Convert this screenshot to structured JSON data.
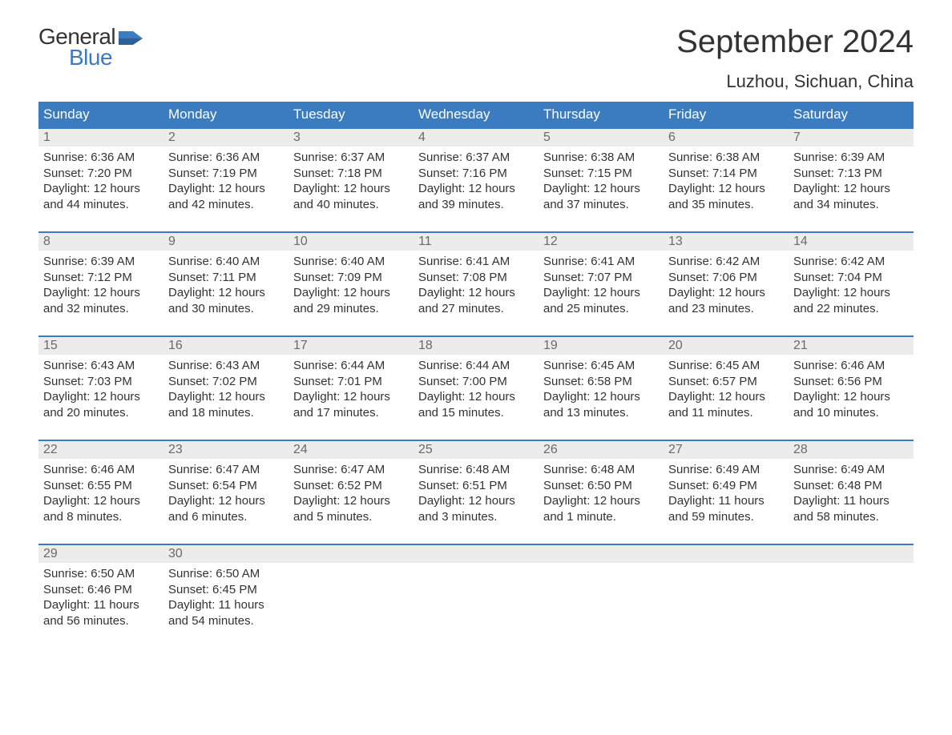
{
  "logo": {
    "line1": "General",
    "line2": "Blue"
  },
  "title": "September 2024",
  "location": "Luzhou, Sichuan, China",
  "colors": {
    "header_bg": "#3b7bbf",
    "header_text": "#ffffff",
    "daynum_bg": "#ececec",
    "daynum_text": "#6a6a6a",
    "body_text": "#333333",
    "rule": "#3b7bbf",
    "page_bg": "#ffffff"
  },
  "day_names": [
    "Sunday",
    "Monday",
    "Tuesday",
    "Wednesday",
    "Thursday",
    "Friday",
    "Saturday"
  ],
  "weeks": [
    [
      {
        "n": "1",
        "sunrise": "6:36 AM",
        "sunset": "7:20 PM",
        "daylight": "12 hours and 44 minutes."
      },
      {
        "n": "2",
        "sunrise": "6:36 AM",
        "sunset": "7:19 PM",
        "daylight": "12 hours and 42 minutes."
      },
      {
        "n": "3",
        "sunrise": "6:37 AM",
        "sunset": "7:18 PM",
        "daylight": "12 hours and 40 minutes."
      },
      {
        "n": "4",
        "sunrise": "6:37 AM",
        "sunset": "7:16 PM",
        "daylight": "12 hours and 39 minutes."
      },
      {
        "n": "5",
        "sunrise": "6:38 AM",
        "sunset": "7:15 PM",
        "daylight": "12 hours and 37 minutes."
      },
      {
        "n": "6",
        "sunrise": "6:38 AM",
        "sunset": "7:14 PM",
        "daylight": "12 hours and 35 minutes."
      },
      {
        "n": "7",
        "sunrise": "6:39 AM",
        "sunset": "7:13 PM",
        "daylight": "12 hours and 34 minutes."
      }
    ],
    [
      {
        "n": "8",
        "sunrise": "6:39 AM",
        "sunset": "7:12 PM",
        "daylight": "12 hours and 32 minutes."
      },
      {
        "n": "9",
        "sunrise": "6:40 AM",
        "sunset": "7:11 PM",
        "daylight": "12 hours and 30 minutes."
      },
      {
        "n": "10",
        "sunrise": "6:40 AM",
        "sunset": "7:09 PM",
        "daylight": "12 hours and 29 minutes."
      },
      {
        "n": "11",
        "sunrise": "6:41 AM",
        "sunset": "7:08 PM",
        "daylight": "12 hours and 27 minutes."
      },
      {
        "n": "12",
        "sunrise": "6:41 AM",
        "sunset": "7:07 PM",
        "daylight": "12 hours and 25 minutes."
      },
      {
        "n": "13",
        "sunrise": "6:42 AM",
        "sunset": "7:06 PM",
        "daylight": "12 hours and 23 minutes."
      },
      {
        "n": "14",
        "sunrise": "6:42 AM",
        "sunset": "7:04 PM",
        "daylight": "12 hours and 22 minutes."
      }
    ],
    [
      {
        "n": "15",
        "sunrise": "6:43 AM",
        "sunset": "7:03 PM",
        "daylight": "12 hours and 20 minutes."
      },
      {
        "n": "16",
        "sunrise": "6:43 AM",
        "sunset": "7:02 PM",
        "daylight": "12 hours and 18 minutes."
      },
      {
        "n": "17",
        "sunrise": "6:44 AM",
        "sunset": "7:01 PM",
        "daylight": "12 hours and 17 minutes."
      },
      {
        "n": "18",
        "sunrise": "6:44 AM",
        "sunset": "7:00 PM",
        "daylight": "12 hours and 15 minutes."
      },
      {
        "n": "19",
        "sunrise": "6:45 AM",
        "sunset": "6:58 PM",
        "daylight": "12 hours and 13 minutes."
      },
      {
        "n": "20",
        "sunrise": "6:45 AM",
        "sunset": "6:57 PM",
        "daylight": "12 hours and 11 minutes."
      },
      {
        "n": "21",
        "sunrise": "6:46 AM",
        "sunset": "6:56 PM",
        "daylight": "12 hours and 10 minutes."
      }
    ],
    [
      {
        "n": "22",
        "sunrise": "6:46 AM",
        "sunset": "6:55 PM",
        "daylight": "12 hours and 8 minutes."
      },
      {
        "n": "23",
        "sunrise": "6:47 AM",
        "sunset": "6:54 PM",
        "daylight": "12 hours and 6 minutes."
      },
      {
        "n": "24",
        "sunrise": "6:47 AM",
        "sunset": "6:52 PM",
        "daylight": "12 hours and 5 minutes."
      },
      {
        "n": "25",
        "sunrise": "6:48 AM",
        "sunset": "6:51 PM",
        "daylight": "12 hours and 3 minutes."
      },
      {
        "n": "26",
        "sunrise": "6:48 AM",
        "sunset": "6:50 PM",
        "daylight": "12 hours and 1 minute."
      },
      {
        "n": "27",
        "sunrise": "6:49 AM",
        "sunset": "6:49 PM",
        "daylight": "11 hours and 59 minutes."
      },
      {
        "n": "28",
        "sunrise": "6:49 AM",
        "sunset": "6:48 PM",
        "daylight": "11 hours and 58 minutes."
      }
    ],
    [
      {
        "n": "29",
        "sunrise": "6:50 AM",
        "sunset": "6:46 PM",
        "daylight": "11 hours and 56 minutes."
      },
      {
        "n": "30",
        "sunrise": "6:50 AM",
        "sunset": "6:45 PM",
        "daylight": "11 hours and 54 minutes."
      },
      null,
      null,
      null,
      null,
      null
    ]
  ],
  "labels": {
    "sunrise": "Sunrise:",
    "sunset": "Sunset:",
    "daylight": "Daylight:"
  }
}
